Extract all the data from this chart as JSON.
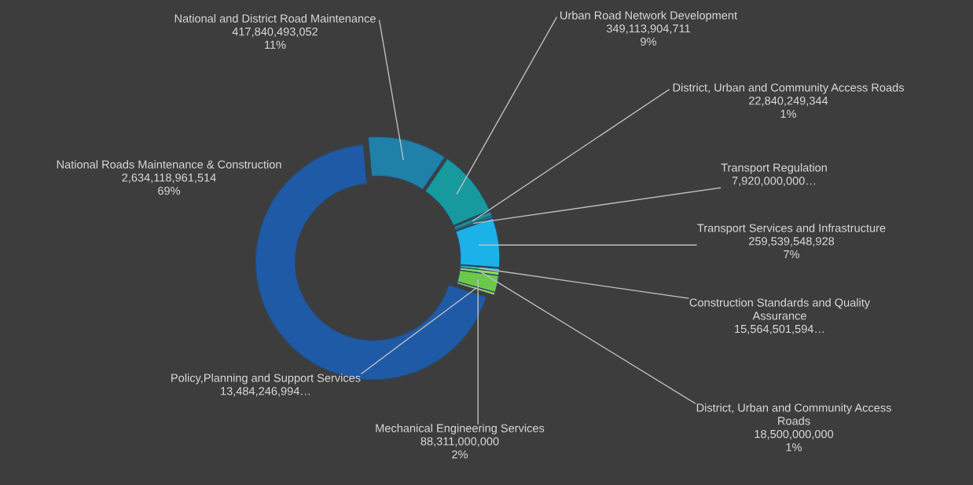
{
  "chart_data": {
    "type": "donut",
    "categories": [
      "National and District Road Maintenance",
      "Urban Road Network Development",
      "District, Urban and Community Access Roads",
      "Transport Regulation",
      "Transport Services and Infrastructure",
      "Construction Standards and Quality Assurance",
      "District, Urban and Community Access Roads",
      "Mechanical Engineering Services",
      "Policy,Planning and Support Services",
      "National Roads Maintenance & Construction"
    ],
    "values": [
      417840493052,
      349113904711,
      22840249344,
      7920000000,
      259539548928,
      15564501594,
      18500000000,
      88311000000,
      13484246994,
      2634118961514
    ],
    "value_labels": [
      "417,840,493,052\n11%",
      "349,113,904,711\n9%",
      "22,840,249,344\n1%",
      "7,920,000,000…",
      "259,539,548,928\n7%",
      "15,564,501,594…",
      "18,500,000,000\n1%",
      "88,311,000,000\n2%",
      "13,484,246,994…",
      "2,634,118,961,514\n69%"
    ],
    "colors": [
      "#1f80a8",
      "#169a9e",
      "#1e8f8f",
      "#2aa8a0",
      "#1ab2e8",
      "#30c8c8",
      "#8fdc5a",
      "#6cc84a",
      "#c0d848",
      "#1f5aa6"
    ],
    "legend": false
  }
}
